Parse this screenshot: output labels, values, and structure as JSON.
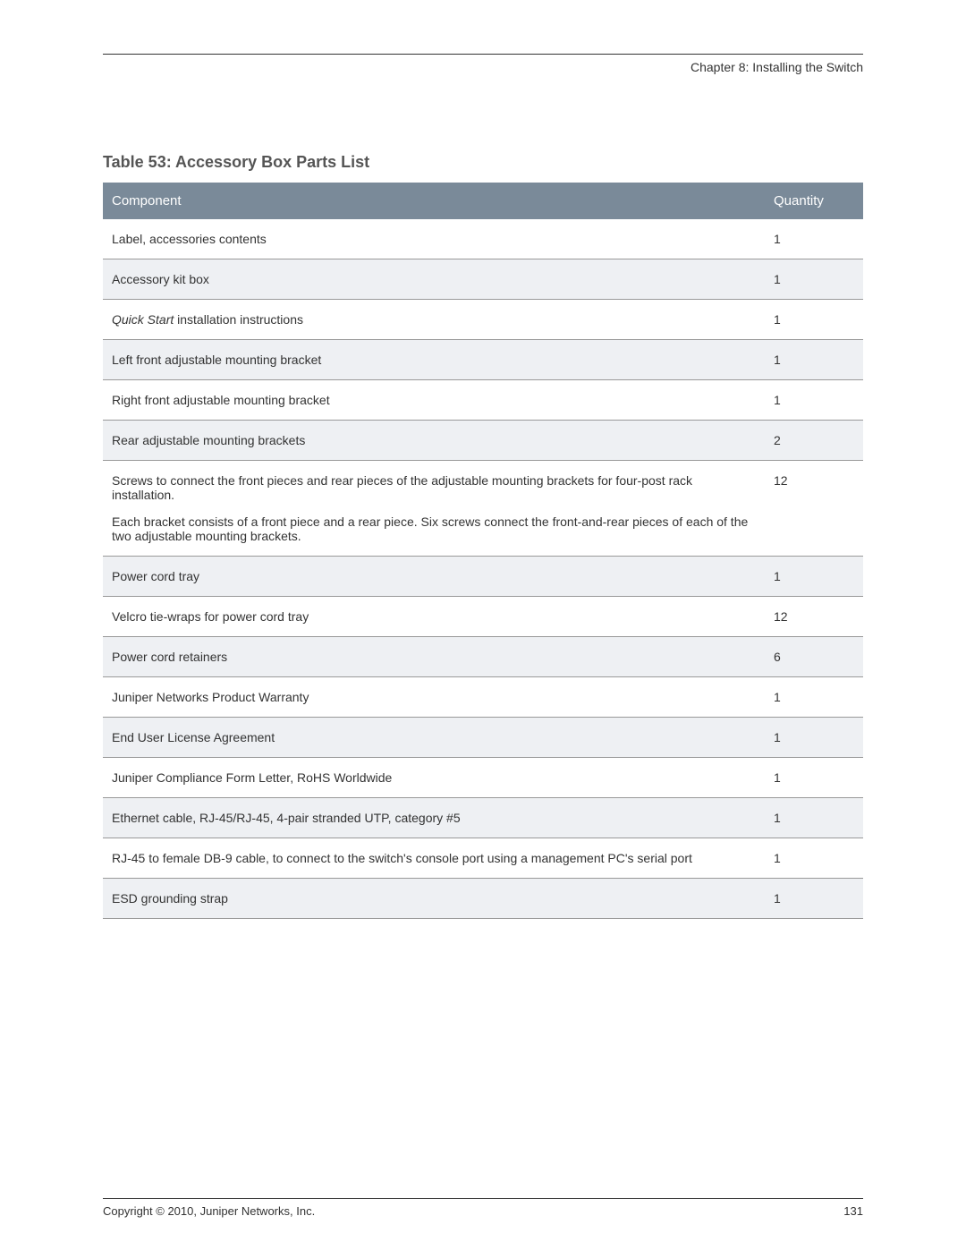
{
  "chapter_header": "Chapter 8: Installing the Switch",
  "table_title": "Table 53: Accessory Box Parts List",
  "columns": {
    "component": "Component",
    "quantity": "Quantity"
  },
  "rows": [
    {
      "component": "Label, accessories contents",
      "quantity": "1"
    },
    {
      "component": "Accessory kit box",
      "quantity": "1"
    },
    {
      "component_italic": "Quick Start",
      "component_rest": " installation instructions",
      "quantity": "1"
    },
    {
      "component": "Left front adjustable mounting bracket",
      "quantity": "1"
    },
    {
      "component": "Right front adjustable mounting bracket",
      "quantity": "1"
    },
    {
      "component": "Rear adjustable mounting brackets",
      "quantity": "2"
    },
    {
      "component": "Screws to connect the front pieces and rear pieces of the adjustable mounting brackets for four-post rack installation.",
      "component_sub": "Each bracket consists of a front piece and a rear piece. Six screws connect the front-and-rear pieces of each of the two adjustable mounting brackets.",
      "quantity": "12"
    },
    {
      "component": "Power cord tray",
      "quantity": "1"
    },
    {
      "component": "Velcro tie-wraps for power cord tray",
      "quantity": "12"
    },
    {
      "component": "Power cord retainers",
      "quantity": "6"
    },
    {
      "component": "Juniper Networks Product Warranty",
      "quantity": "1"
    },
    {
      "component": "End User License Agreement",
      "quantity": "1"
    },
    {
      "component": "Juniper Compliance Form Letter, RoHS Worldwide",
      "quantity": "1"
    },
    {
      "component": "Ethernet cable, RJ-45/RJ-45, 4-pair stranded UTP, category #5",
      "quantity": "1"
    },
    {
      "component": "RJ-45 to female DB-9 cable, to connect to the switch's console port using a management PC's serial port",
      "quantity": "1"
    },
    {
      "component": "ESD grounding strap",
      "quantity": "1"
    }
  ],
  "footer": {
    "copyright": "Copyright © 2010, Juniper Networks, Inc.",
    "page_number": "131"
  },
  "styling": {
    "header_bg": "#7a8a99",
    "header_text": "#ffffff",
    "row_even_bg": "#eef0f3",
    "row_odd_bg": "#ffffff",
    "border_color": "#999999",
    "title_color": "#555555",
    "body_text_color": "#333333",
    "title_fontsize": 18,
    "header_fontsize": 15,
    "cell_fontsize": 14,
    "footer_fontsize": 13
  }
}
